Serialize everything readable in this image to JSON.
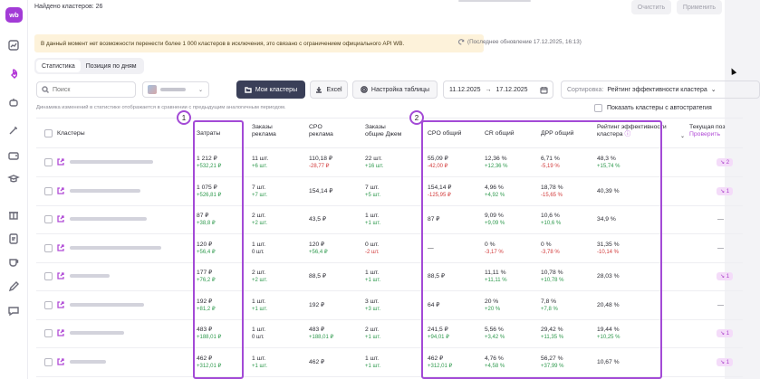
{
  "app": {
    "logo": "wb"
  },
  "sidebar": {
    "icons": [
      "chart-icon",
      "rocket-icon",
      "bot-icon",
      "magic-wand-icon",
      "wallet-icon",
      "graduation-cap-icon",
      "gift-icon",
      "price-tag-icon",
      "cup-icon",
      "edit-icon",
      "chat-icon"
    ]
  },
  "topbar": {
    "found_text": "Найдено кластеров: 26",
    "clear_label": "Очистить",
    "apply_label": "Применить"
  },
  "banner": {
    "text": "В данный момент нет возможности перенести более 1 000 кластеров в исключения, это связано с ограничением официального API WB.",
    "updated": "(Последнее обновление 17.12.2025, 16:13)"
  },
  "tabs": [
    {
      "label": "Статистика",
      "active": true
    },
    {
      "label": "Позиция по дням",
      "active": false
    }
  ],
  "toolbar": {
    "search_placeholder": "Поиск",
    "my_clusters_label": "Мои кластеры",
    "excel_label": "Excel",
    "table_settings_label": "Настройка таблицы",
    "date_from": "11.12.2025",
    "date_arrow": "→",
    "date_to": "17.12.2025",
    "sort_label": "Сортировка:",
    "sort_value": "Рейтинг эффективности кластера",
    "hint": "Динамика изменений в статистике отображается в сравнении с предыдущим аналогичным периодом.",
    "auto_strategy_label": "Показать кластеры с автостратегия"
  },
  "table": {
    "headers": {
      "clusters": "Кластеры",
      "spend": "Затраты",
      "orders_ad_1": "Заказы",
      "orders_ad_2": "реклама",
      "cpo_ad_1": "CPO",
      "cpo_ad_2": "реклама",
      "orders_total_1": "Заказы",
      "orders_total_2": "общие Джем",
      "cpo_total": "CPO общий",
      "cr_total": "CR общий",
      "drr_total": "ДРР общий",
      "rating_1": "Рейтинг эффективности",
      "rating_2": "кластера",
      "current_1": "Текущая поз",
      "current_2": "Проверить"
    },
    "rows": [
      {
        "spend": "1 212 ₽",
        "spend_d": "+532,21 ₽",
        "oa": "11 шт.",
        "oa_d": "+6 шт.",
        "ca": "110,18 ₽",
        "ca_d": "-28,77 ₽",
        "ot": "22 шт.",
        "ot_d": "+16 шт.",
        "ct": "55,09 ₽",
        "ct_d": "-42,00 ₽",
        "cr": "12,36 %",
        "cr_d": "+12,36 %",
        "drr": "6,71 %",
        "drr_d": "-5,19 %",
        "rt": "48,3 %",
        "rt_d": "+15,74 %",
        "cur": "2"
      },
      {
        "spend": "1 075 ₽",
        "spend_d": "+526,81 ₽",
        "oa": "7 шт.",
        "oa_d": "+7 шт.",
        "ca": "154,14 ₽",
        "ca_d": "",
        "ot": "7 шт.",
        "ot_d": "+5 шт.",
        "ct": "154,14 ₽",
        "ct_d": "-125,95 ₽",
        "cr": "4,96 %",
        "cr_d": "+4,92 %",
        "drr": "18,78 %",
        "drr_d": "-15,65 %",
        "rt": "40,39 %",
        "rt_d": "",
        "cur": "1"
      },
      {
        "spend": "87 ₽",
        "spend_d": "+38,8 ₽",
        "oa": "2 шт.",
        "oa_d": "+2 шт.",
        "ca": "43,5 ₽",
        "ca_d": "",
        "ot": "1 шт.",
        "ot_d": "+1 шт.",
        "ct": "87 ₽",
        "ct_d": "",
        "cr": "9,09 %",
        "cr_d": "+9,09 %",
        "drr": "10,6 %",
        "drr_d": "+10,6 %",
        "rt": "34,9 %",
        "rt_d": "",
        "cur": ""
      },
      {
        "spend": "120 ₽",
        "spend_d": "+56,4 ₽",
        "oa": "1 шт.",
        "oa_d": "0 шт.",
        "ca": "120 ₽",
        "ca_d": "+56,4 ₽",
        "ot": "0 шт.",
        "ot_d": "-2 шт.",
        "ct": "—",
        "ct_d": "",
        "cr": "0 %",
        "cr_d": "-3,17 %",
        "drr": "0 %",
        "drr_d": "-3,78 %",
        "rt": "31,35 %",
        "rt_d": "-10,14 %",
        "cur": ""
      },
      {
        "spend": "177 ₽",
        "spend_d": "+76,2 ₽",
        "oa": "2 шт.",
        "oa_d": "+2 шт.",
        "ca": "88,5 ₽",
        "ca_d": "",
        "ot": "1 шт.",
        "ot_d": "+1 шт.",
        "ct": "88,5 ₽",
        "ct_d": "",
        "cr": "11,11 %",
        "cr_d": "+11,11 %",
        "drr": "10,78 %",
        "drr_d": "+10,78 %",
        "rt": "28,03 %",
        "rt_d": "",
        "cur": "1"
      },
      {
        "spend": "192 ₽",
        "spend_d": "+81,2 ₽",
        "oa": "1 шт.",
        "oa_d": "+1 шт.",
        "ca": "192 ₽",
        "ca_d": "",
        "ot": "3 шт.",
        "ot_d": "+3 шт.",
        "ct": "64 ₽",
        "ct_d": "",
        "cr": "20 %",
        "cr_d": "+20 %",
        "drr": "7,8 %",
        "drr_d": "+7,8 %",
        "rt": "20,48 %",
        "rt_d": "",
        "cur": ""
      },
      {
        "spend": "483 ₽",
        "spend_d": "+188,01 ₽",
        "oa": "1 шт.",
        "oa_d": "0 шт.",
        "ca": "483 ₽",
        "ca_d": "+188,01 ₽",
        "ot": "2 шт.",
        "ot_d": "+1 шт.",
        "ct": "241,5 ₽",
        "ct_d": "+94,01 ₽",
        "cr": "5,56 %",
        "cr_d": "+3,42 %",
        "drr": "29,42 %",
        "drr_d": "+11,35 %",
        "rt": "19,44 %",
        "rt_d": "+10,25 %",
        "cur": "1"
      },
      {
        "spend": "462 ₽",
        "spend_d": "+312,01 ₽",
        "oa": "1 шт.",
        "oa_d": "+1 шт.",
        "ca": "462 ₽",
        "ca_d": "",
        "ot": "1 шт.",
        "ot_d": "+1 шт.",
        "ct": "462 ₽",
        "ct_d": "+312,01 ₽",
        "cr": "4,76 %",
        "cr_d": "+4,58 %",
        "drr": "56,27 %",
        "drr_d": "+37,99 %",
        "rt": "10,67 %",
        "rt_d": "",
        "cur": "1"
      }
    ]
  },
  "annotations": {
    "box1": "1",
    "box2": "2"
  },
  "colors": {
    "accent": "#a34ad6",
    "positive": "#2f9a4e",
    "negative": "#d23b3b",
    "banner_bg": "#fdf2da",
    "dark_button": "#3a3f58"
  }
}
